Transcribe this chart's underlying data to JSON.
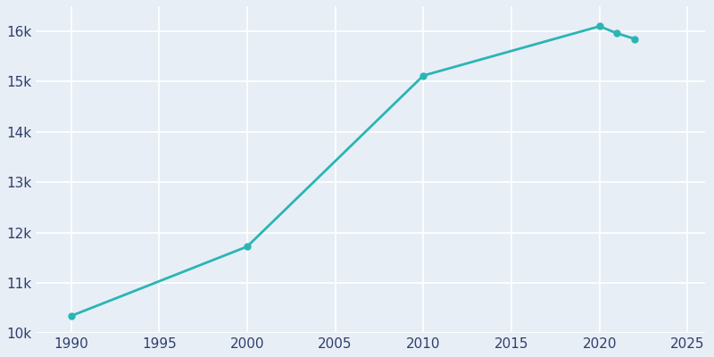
{
  "years": [
    1990,
    2000,
    2010,
    2020,
    2021,
    2022
  ],
  "population": [
    10340,
    11720,
    15120,
    16100,
    15960,
    15850
  ],
  "line_color": "#2ab5b5",
  "marker_color": "#2ab5b5",
  "background_color": "#e8eef5",
  "grid_color": "#ffffff",
  "tick_label_color": "#2e3f6e",
  "xlim": [
    1988,
    2026
  ],
  "ylim": [
    10000,
    16500
  ],
  "yticks": [
    10000,
    11000,
    12000,
    13000,
    14000,
    15000,
    16000
  ],
  "ytick_labels": [
    "10k",
    "11k",
    "12k",
    "13k",
    "14k",
    "15k",
    "16k"
  ],
  "xticks": [
    1990,
    1995,
    2000,
    2005,
    2010,
    2015,
    2020,
    2025
  ],
  "linewidth": 2.0,
  "marker_size": 5,
  "marker_style": "o"
}
